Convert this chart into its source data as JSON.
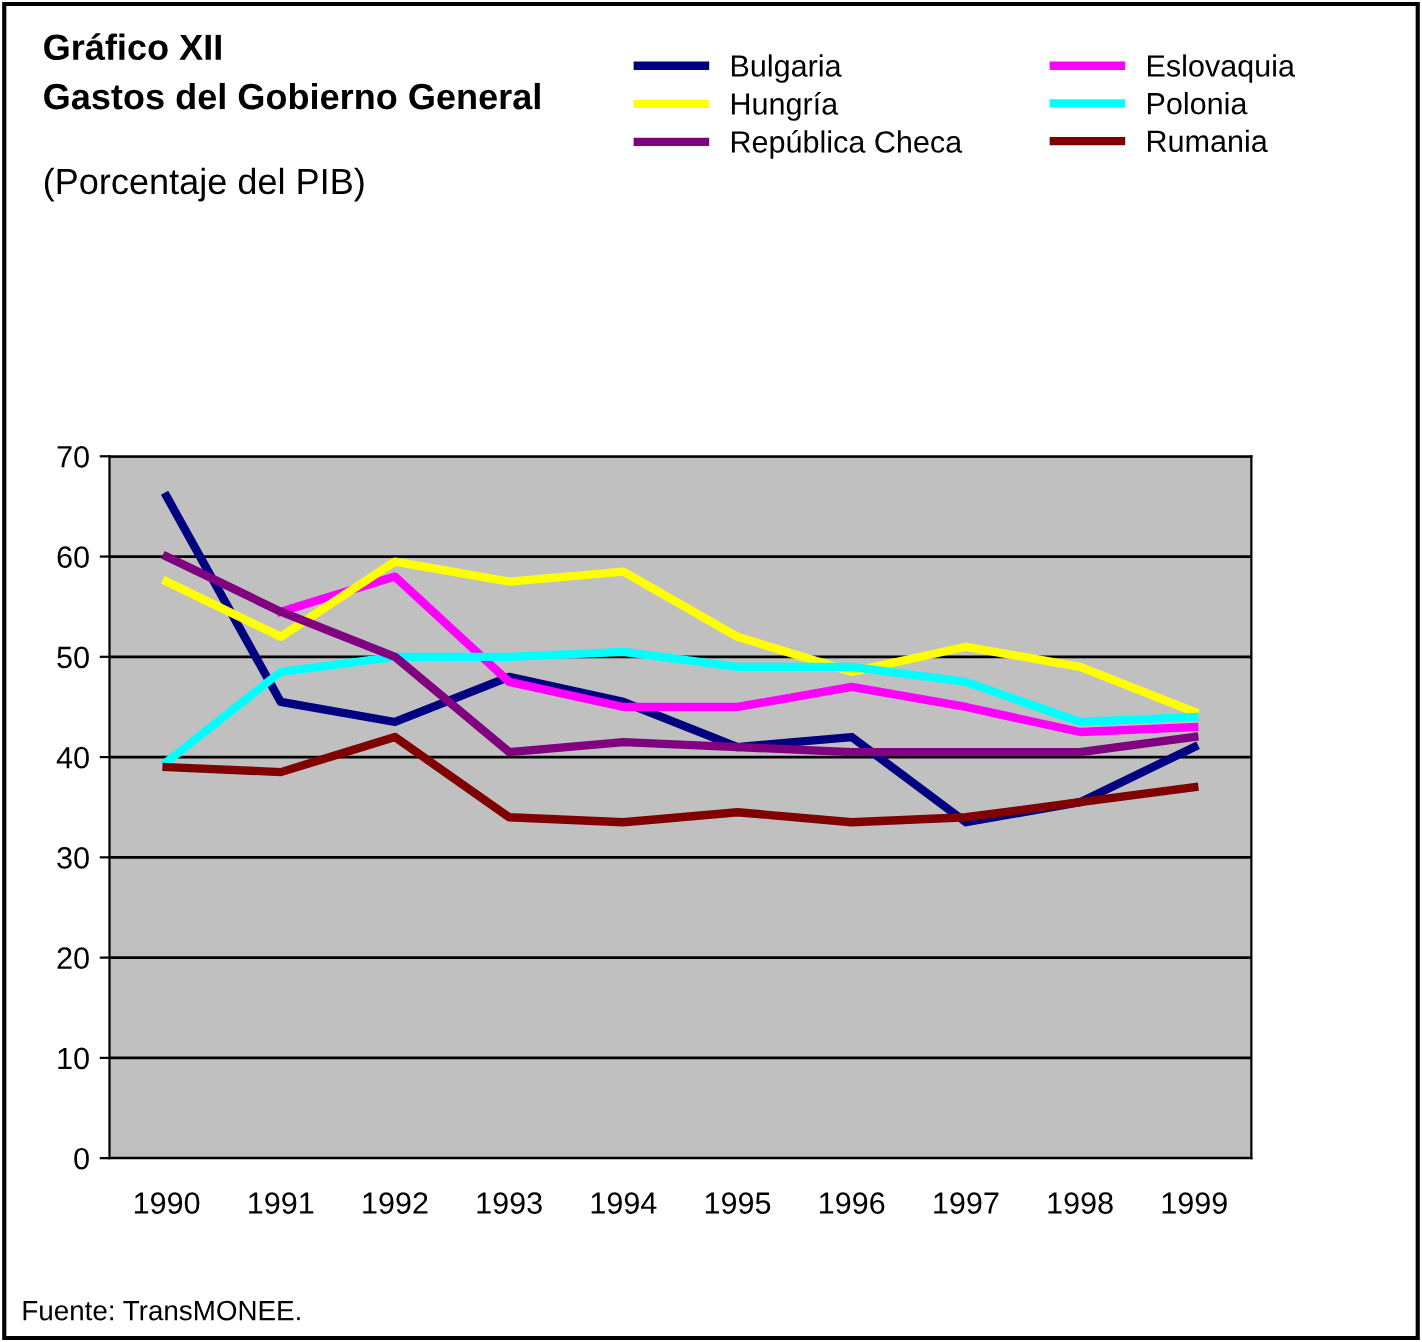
{
  "chart_data": {
    "type": "line",
    "title": "Gráfico XII\nGastos del Gobierno General",
    "subtitle": "(Porcentaje del PIB)",
    "categories": [
      "1990",
      "1991",
      "1992",
      "1993",
      "1994",
      "1995",
      "1996",
      "1997",
      "1998",
      "1999"
    ],
    "series": [
      {
        "name": "Bulgaria",
        "color": "#000080",
        "values": [
          66,
          45.5,
          43.5,
          48,
          45.5,
          41,
          42,
          33.5,
          35.5,
          41
        ]
      },
      {
        "name": "Eslovaquia",
        "color": "#ff00ff",
        "values": [
          null,
          54.5,
          58,
          47.5,
          45,
          45,
          47,
          45,
          42.5,
          43
        ]
      },
      {
        "name": "Hungría",
        "color": "#ffff00",
        "values": [
          57.5,
          52,
          59.5,
          57.5,
          58.5,
          52,
          48.5,
          51,
          49,
          44.5
        ]
      },
      {
        "name": "Polonia",
        "color": "#00ffff",
        "values": [
          39.5,
          48.5,
          50,
          50,
          50.5,
          49,
          49,
          47.5,
          43.5,
          44
        ]
      },
      {
        "name": "República Checa",
        "color": "#800080",
        "values": [
          60,
          54.5,
          50,
          40.5,
          41.5,
          41,
          40.5,
          40.5,
          40.5,
          42
        ]
      },
      {
        "name": "Rumania",
        "color": "#800000",
        "values": [
          39,
          38.5,
          42,
          34,
          33.5,
          34.5,
          33.5,
          34,
          35.5,
          37
        ]
      }
    ],
    "ylim": [
      0,
      70
    ],
    "yticks": [
      0,
      10,
      20,
      30,
      40,
      50,
      60,
      70
    ],
    "grid": "y",
    "legend": "top right",
    "marker": "none",
    "line_style": "solid",
    "annotations": [
      "Fuente: TransMONEE."
    ]
  }
}
